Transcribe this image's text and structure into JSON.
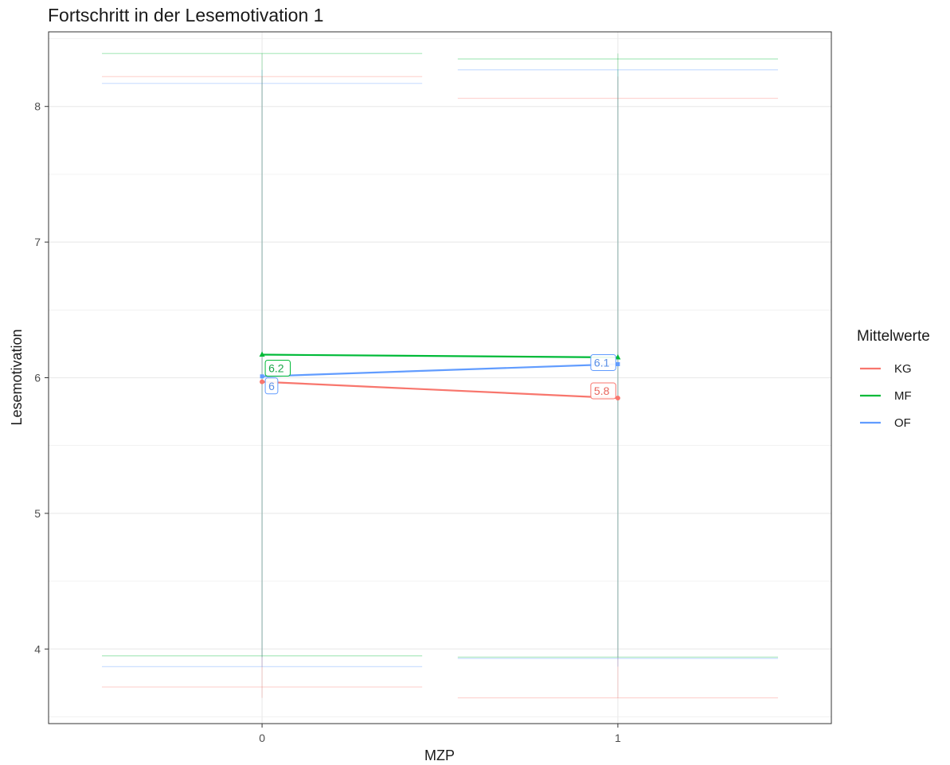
{
  "chart_data": {
    "type": "line",
    "title": "Fortschritt in der Lesemotivation 1",
    "xlabel": "MZP",
    "ylabel": "Lesemotivation",
    "categories": [
      "0",
      "1"
    ],
    "x": [
      0,
      1
    ],
    "xlim": [
      -0.6,
      1.6
    ],
    "ylim": [
      3.45,
      8.55
    ],
    "yticks": [
      4,
      5,
      6,
      7,
      8
    ],
    "grid": true,
    "legend": {
      "title": "Mittelwerte",
      "placement": "right"
    },
    "series": [
      {
        "name": "KG",
        "color": "#F8766D",
        "values": [
          5.97,
          5.85
        ],
        "labels": [
          "6",
          "5.8"
        ],
        "range_upper": [
          8.22,
          8.06
        ],
        "range_lower": [
          3.72,
          3.64
        ]
      },
      {
        "name": "MF",
        "color": "#00BA38",
        "values": [
          6.17,
          6.15
        ],
        "labels": [
          "6.2",
          "6.1"
        ],
        "range_upper": [
          8.39,
          8.35
        ],
        "range_lower": [
          3.95,
          3.94
        ]
      },
      {
        "name": "OF",
        "color": "#619CFF",
        "values": [
          6.01,
          6.1
        ],
        "labels": [
          "6",
          "6.1"
        ],
        "range_upper": [
          8.17,
          8.27
        ],
        "range_lower": [
          3.87,
          3.93
        ]
      }
    ]
  }
}
